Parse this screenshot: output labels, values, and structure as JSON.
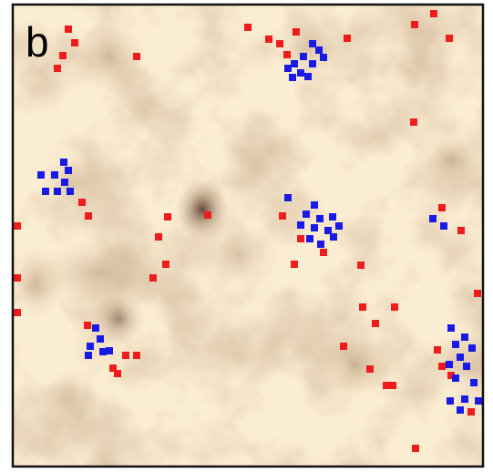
{
  "panel": {
    "label": "b"
  }
}
